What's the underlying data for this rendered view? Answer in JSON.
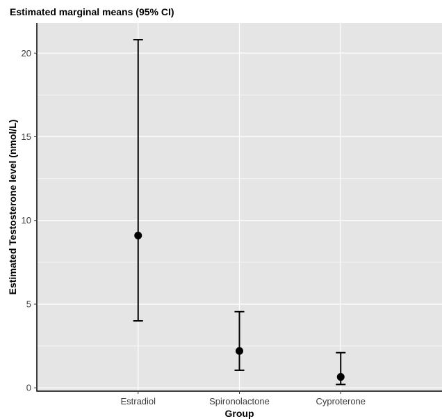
{
  "chart_data": {
    "type": "errorbar",
    "title": "Estimated marginal means (95% CI)",
    "xlabel": "Group",
    "ylabel": "Estimated Testosterone level (nmol/L)",
    "categories": [
      "Estradiol",
      "Spironolactone",
      "Cyproterone"
    ],
    "series": [
      {
        "estimates": [
          9.1,
          2.2,
          0.65
        ],
        "lower": [
          4.0,
          1.05,
          0.2
        ],
        "upper": [
          20.8,
          4.55,
          2.1
        ]
      }
    ],
    "yticks": [
      0,
      5,
      10,
      15,
      20
    ],
    "ylim": [
      -0.2,
      21.8
    ],
    "grid": true,
    "legend": "none",
    "colors": {
      "panel": "#e5e5e5",
      "grid": "#ffffff",
      "marks": "#000000"
    }
  }
}
